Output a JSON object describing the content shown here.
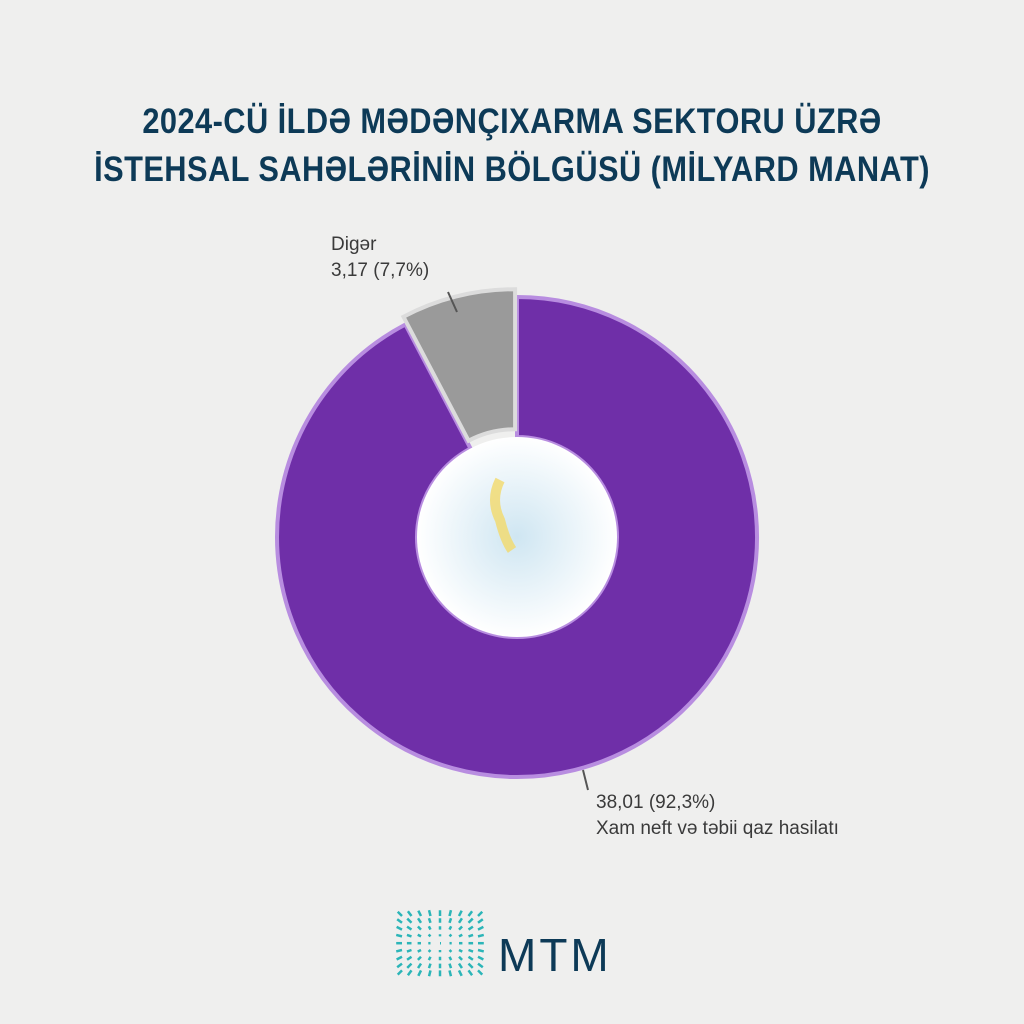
{
  "chart_data": {
    "type": "pie",
    "title": [
      "2024-CÜ İLDƏ MƏDƏNÇIXARMA SEKTORU ÜZRƏ",
      "İSTEHSAL SAHƏLƏRİNİN BÖLGÜSÜ (MİLYARD MANAT)"
    ],
    "slices": [
      {
        "name": "Xam neft və təbii qaz hasilatı",
        "value": 38.01,
        "percent": 92.3,
        "value_label": "38,01 (92,3%)",
        "color": "#6f2fa8"
      },
      {
        "name": "Digər",
        "value": 3.17,
        "percent": 7.7,
        "value_label": "3,17 (7,7%)",
        "color": "#9a9a9a"
      }
    ],
    "donut": true
  },
  "logo": {
    "text": "MTM",
    "color": "#0d3a57",
    "accent": "#2bb5b8"
  }
}
